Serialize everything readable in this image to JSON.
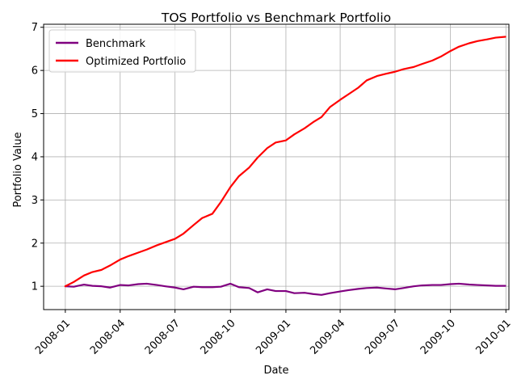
{
  "chart_data": {
    "type": "line",
    "title": "TOS Portfolio vs Benchmark Portfolio",
    "xlabel": "Date",
    "ylabel": "Portfolio Value",
    "xlim": [
      "2007-11-26",
      "2010-01-06"
    ],
    "ylim": [
      0.46,
      7.07
    ],
    "x_ticks": [
      "2008-01",
      "2008-04",
      "2008-07",
      "2008-10",
      "2009-01",
      "2009-04",
      "2009-07",
      "2009-10",
      "2010-01"
    ],
    "y_ticks": [
      1,
      2,
      3,
      4,
      5,
      6,
      7
    ],
    "grid": true,
    "legend_position": "top-left",
    "series": [
      {
        "name": "Benchmark",
        "color": "#800080",
        "x": [
          "2008-01-01",
          "2008-01-15",
          "2008-02-01",
          "2008-02-15",
          "2008-03-01",
          "2008-03-15",
          "2008-04-01",
          "2008-04-15",
          "2008-05-01",
          "2008-05-15",
          "2008-06-01",
          "2008-06-15",
          "2008-07-01",
          "2008-07-15",
          "2008-08-01",
          "2008-08-15",
          "2008-09-01",
          "2008-09-15",
          "2008-10-01",
          "2008-10-15",
          "2008-11-01",
          "2008-11-15",
          "2008-12-01",
          "2008-12-15",
          "2009-01-01",
          "2009-01-15",
          "2009-02-01",
          "2009-02-15",
          "2009-03-01",
          "2009-03-15",
          "2009-04-01",
          "2009-04-15",
          "2009-05-01",
          "2009-05-15",
          "2009-06-01",
          "2009-06-15",
          "2009-07-01",
          "2009-07-15",
          "2009-08-01",
          "2009-08-15",
          "2009-09-01",
          "2009-09-15",
          "2009-10-01",
          "2009-10-15",
          "2009-11-01",
          "2009-11-15",
          "2009-12-01",
          "2009-12-15",
          "2009-12-31"
        ],
        "values": [
          1.0,
          0.99,
          1.04,
          1.01,
          1.0,
          0.97,
          1.03,
          1.02,
          1.05,
          1.06,
          1.03,
          1.0,
          0.97,
          0.93,
          0.99,
          0.98,
          0.98,
          0.99,
          1.06,
          0.98,
          0.96,
          0.86,
          0.93,
          0.89,
          0.89,
          0.84,
          0.85,
          0.82,
          0.8,
          0.84,
          0.88,
          0.91,
          0.94,
          0.96,
          0.97,
          0.95,
          0.93,
          0.96,
          1.0,
          1.02,
          1.03,
          1.03,
          1.05,
          1.06,
          1.04,
          1.03,
          1.02,
          1.01,
          1.01
        ]
      },
      {
        "name": "Optimized Portfolio",
        "color": "#ff0000",
        "x": [
          "2008-01-01",
          "2008-01-15",
          "2008-02-01",
          "2008-02-15",
          "2008-03-01",
          "2008-03-15",
          "2008-04-01",
          "2008-04-15",
          "2008-05-01",
          "2008-05-15",
          "2008-06-01",
          "2008-06-15",
          "2008-07-01",
          "2008-07-15",
          "2008-08-01",
          "2008-08-15",
          "2008-09-01",
          "2008-09-15",
          "2008-10-01",
          "2008-10-15",
          "2008-11-01",
          "2008-11-15",
          "2008-12-01",
          "2008-12-15",
          "2009-01-01",
          "2009-01-15",
          "2009-02-01",
          "2009-02-15",
          "2009-03-01",
          "2009-03-15",
          "2009-04-01",
          "2009-04-15",
          "2009-05-01",
          "2009-05-15",
          "2009-06-01",
          "2009-06-15",
          "2009-07-01",
          "2009-07-15",
          "2009-08-01",
          "2009-08-15",
          "2009-09-01",
          "2009-09-15",
          "2009-10-01",
          "2009-10-15",
          "2009-11-01",
          "2009-11-15",
          "2009-12-01",
          "2009-12-15",
          "2009-12-31"
        ],
        "values": [
          1.0,
          1.1,
          1.25,
          1.33,
          1.38,
          1.48,
          1.62,
          1.7,
          1.78,
          1.85,
          1.95,
          2.02,
          2.1,
          2.22,
          2.42,
          2.58,
          2.68,
          2.95,
          3.3,
          3.55,
          3.75,
          3.98,
          4.2,
          4.33,
          4.38,
          4.52,
          4.66,
          4.8,
          4.92,
          5.15,
          5.32,
          5.45,
          5.6,
          5.77,
          5.87,
          5.92,
          5.97,
          6.03,
          6.08,
          6.15,
          6.23,
          6.32,
          6.45,
          6.55,
          6.63,
          6.68,
          6.72,
          6.76,
          6.78
        ]
      }
    ]
  }
}
